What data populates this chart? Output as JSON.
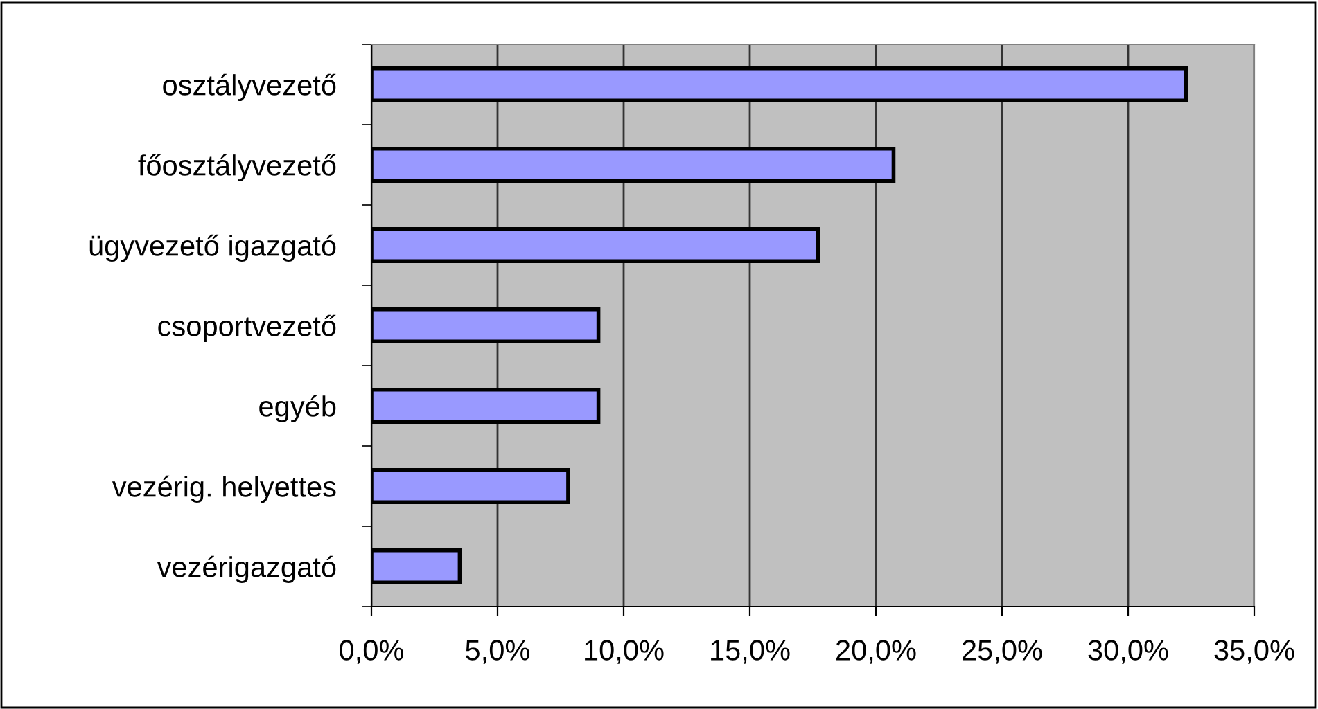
{
  "chart_data": {
    "type": "bar",
    "orientation": "horizontal",
    "categories": [
      "osztályvezető",
      "főosztályvezető",
      "ügyvezető igazgató",
      "csoportvezető",
      "egyéb",
      "vezérig. helyettes",
      "vezérigazgató"
    ],
    "values": [
      32.3,
      20.7,
      17.7,
      9.0,
      9.0,
      7.8,
      3.5
    ],
    "color": "#9999ff",
    "xlim": [
      0,
      35
    ],
    "xticks": [
      {
        "value": 0,
        "label": "0,0%"
      },
      {
        "value": 5,
        "label": "5,0%"
      },
      {
        "value": 10,
        "label": "10,0%"
      },
      {
        "value": 15,
        "label": "15,0%"
      },
      {
        "value": 20,
        "label": "20,0%"
      },
      {
        "value": 25,
        "label": "25,0%"
      },
      {
        "value": 30,
        "label": "30,0%"
      },
      {
        "value": 35,
        "label": "35,0%"
      }
    ],
    "grid": "x",
    "legend": false
  }
}
